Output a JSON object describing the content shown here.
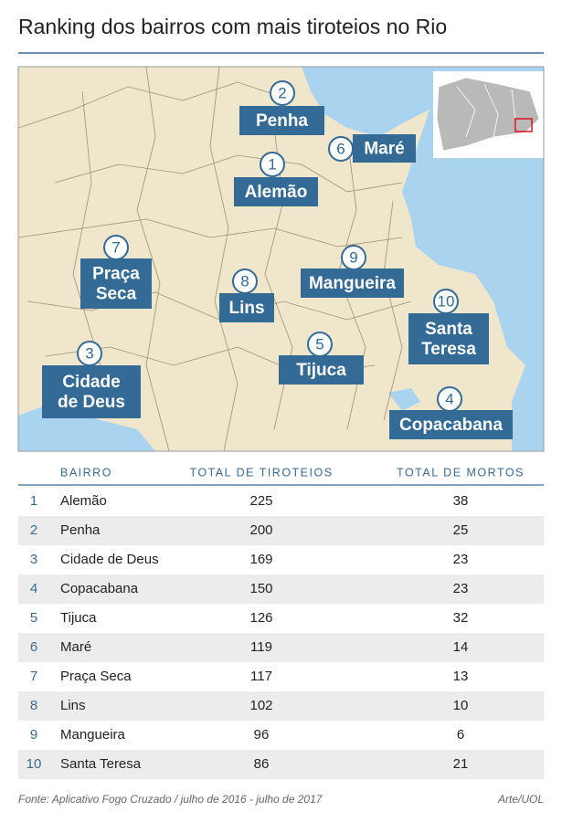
{
  "title": "Ranking dos bairros com mais tiroteios no Rio",
  "map": {
    "labels": [
      {
        "rank": 2,
        "lines": [
          "Penha"
        ]
      },
      {
        "rank": 6,
        "lines": [
          "Maré"
        ]
      },
      {
        "rank": 1,
        "lines": [
          "Alemão"
        ]
      },
      {
        "rank": 7,
        "lines": [
          "Praça",
          "Seca"
        ]
      },
      {
        "rank": 9,
        "lines": [
          "Mangueira"
        ]
      },
      {
        "rank": 8,
        "lines": [
          "Lins"
        ]
      },
      {
        "rank": 10,
        "lines": [
          "Santa",
          "Teresa"
        ]
      },
      {
        "rank": 5,
        "lines": [
          "Tijuca"
        ]
      },
      {
        "rank": 3,
        "lines": [
          "Cidade",
          "de Deus"
        ]
      },
      {
        "rank": 4,
        "lines": [
          "Copacabana"
        ]
      }
    ]
  },
  "table": {
    "columns": [
      "BAIRRO",
      "TOTAL DE TIROTEIOS",
      "TOTAL DE MORTOS"
    ],
    "rows": [
      [
        1,
        "Alemão",
        225,
        38
      ],
      [
        2,
        "Penha",
        200,
        25
      ],
      [
        3,
        "Cidade de Deus",
        169,
        23
      ],
      [
        4,
        "Copacabana",
        150,
        23
      ],
      [
        5,
        "Tijuca",
        126,
        32
      ],
      [
        6,
        "Maré",
        119,
        14
      ],
      [
        7,
        "Praça Seca",
        117,
        13
      ],
      [
        8,
        "Lins",
        102,
        10
      ],
      [
        9,
        "Mangueira",
        96,
        6
      ],
      [
        10,
        "Santa Teresa",
        86,
        21
      ]
    ]
  },
  "footer": {
    "source": "Fonte: Aplicativo Fogo Cruzado / julho de 2016 - julho de 2017",
    "credit": "Arte/UOL"
  }
}
